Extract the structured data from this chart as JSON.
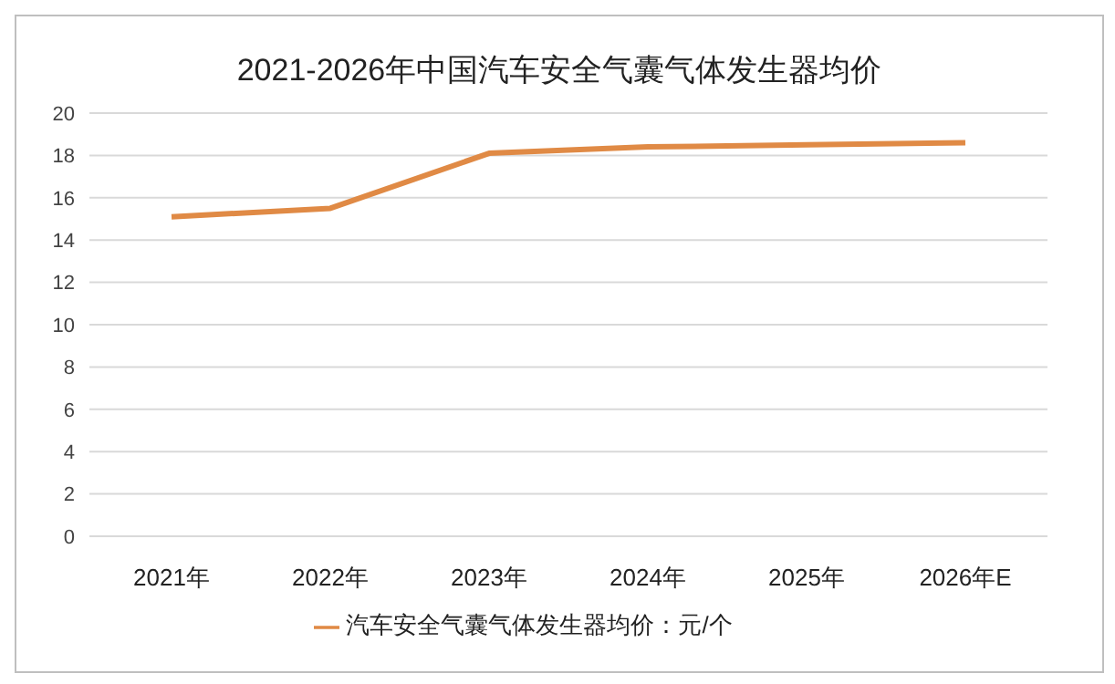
{
  "chart_data": {
    "type": "line",
    "title": "2021-2026年中国汽车安全气囊气体发生器均价",
    "categories": [
      "2021年",
      "2022年",
      "2023年",
      "2024年",
      "2025年",
      "2026年E"
    ],
    "series": [
      {
        "name": "汽车安全气囊气体发生器均价：元/个",
        "color": "#e08a45",
        "values": [
          15.1,
          15.5,
          18.1,
          18.4,
          18.5,
          18.6
        ]
      }
    ],
    "ylim": [
      0,
      20
    ],
    "yticks": [
      0,
      2,
      4,
      6,
      8,
      10,
      12,
      14,
      16,
      18,
      20
    ],
    "grid": "y",
    "legend": "bottom",
    "marker": "none",
    "line_style": "solid"
  }
}
